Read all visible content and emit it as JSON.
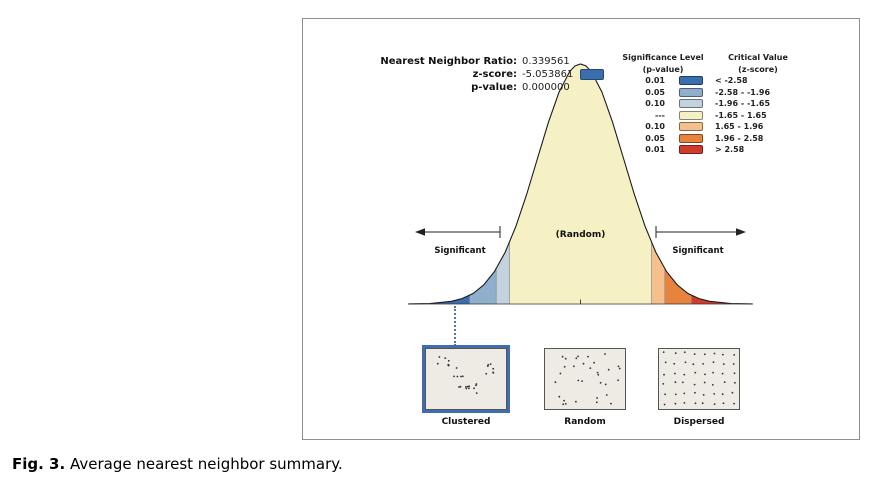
{
  "figure": {
    "stats": {
      "rows": [
        {
          "label": "Nearest Neighbor Ratio:",
          "value": "0.339561"
        },
        {
          "label": "z-score:",
          "value": "-5.053861"
        },
        {
          "label": "p-value:",
          "value": "0.000000"
        }
      ],
      "zscore_swatch_color": "#3a6fae"
    },
    "legend": {
      "significance_header": "Significance Level",
      "significance_subheader": "(p-value)",
      "critical_header": "Critical Value",
      "critical_subheader": "(z-score)",
      "rows": [
        {
          "significance": "0.01",
          "color": "#3a6fae",
          "critical": "< -2.58"
        },
        {
          "significance": "0.05",
          "color": "#8fafcc",
          "critical": "-2.58 - -1.96"
        },
        {
          "significance": "0.10",
          "color": "#c3d2de",
          "critical": "-1.96 - -1.65"
        },
        {
          "significance": "---",
          "color": "#f6f1c4",
          "critical": "-1.65 - 1.65"
        },
        {
          "significance": "0.10",
          "color": "#f5c08c",
          "critical": "1.65 - 1.96"
        },
        {
          "significance": "0.05",
          "color": "#e8833e",
          "critical": "1.96 - 2.58"
        },
        {
          "significance": "0.01",
          "color": "#d03b2c",
          "critical": "> 2.58"
        }
      ]
    },
    "curve": {
      "random_label": "(Random)",
      "left_label": "Significant",
      "right_label": "Significant"
    },
    "patterns": [
      {
        "label": "Clustered",
        "type": "clustered",
        "highlighted": true
      },
      {
        "label": "Random",
        "type": "random",
        "highlighted": false
      },
      {
        "label": "Dispersed",
        "type": "dispersed",
        "highlighted": false
      }
    ]
  },
  "caption": {
    "label": "Fig. 3.",
    "text": "Average nearest neighbor summary."
  }
}
